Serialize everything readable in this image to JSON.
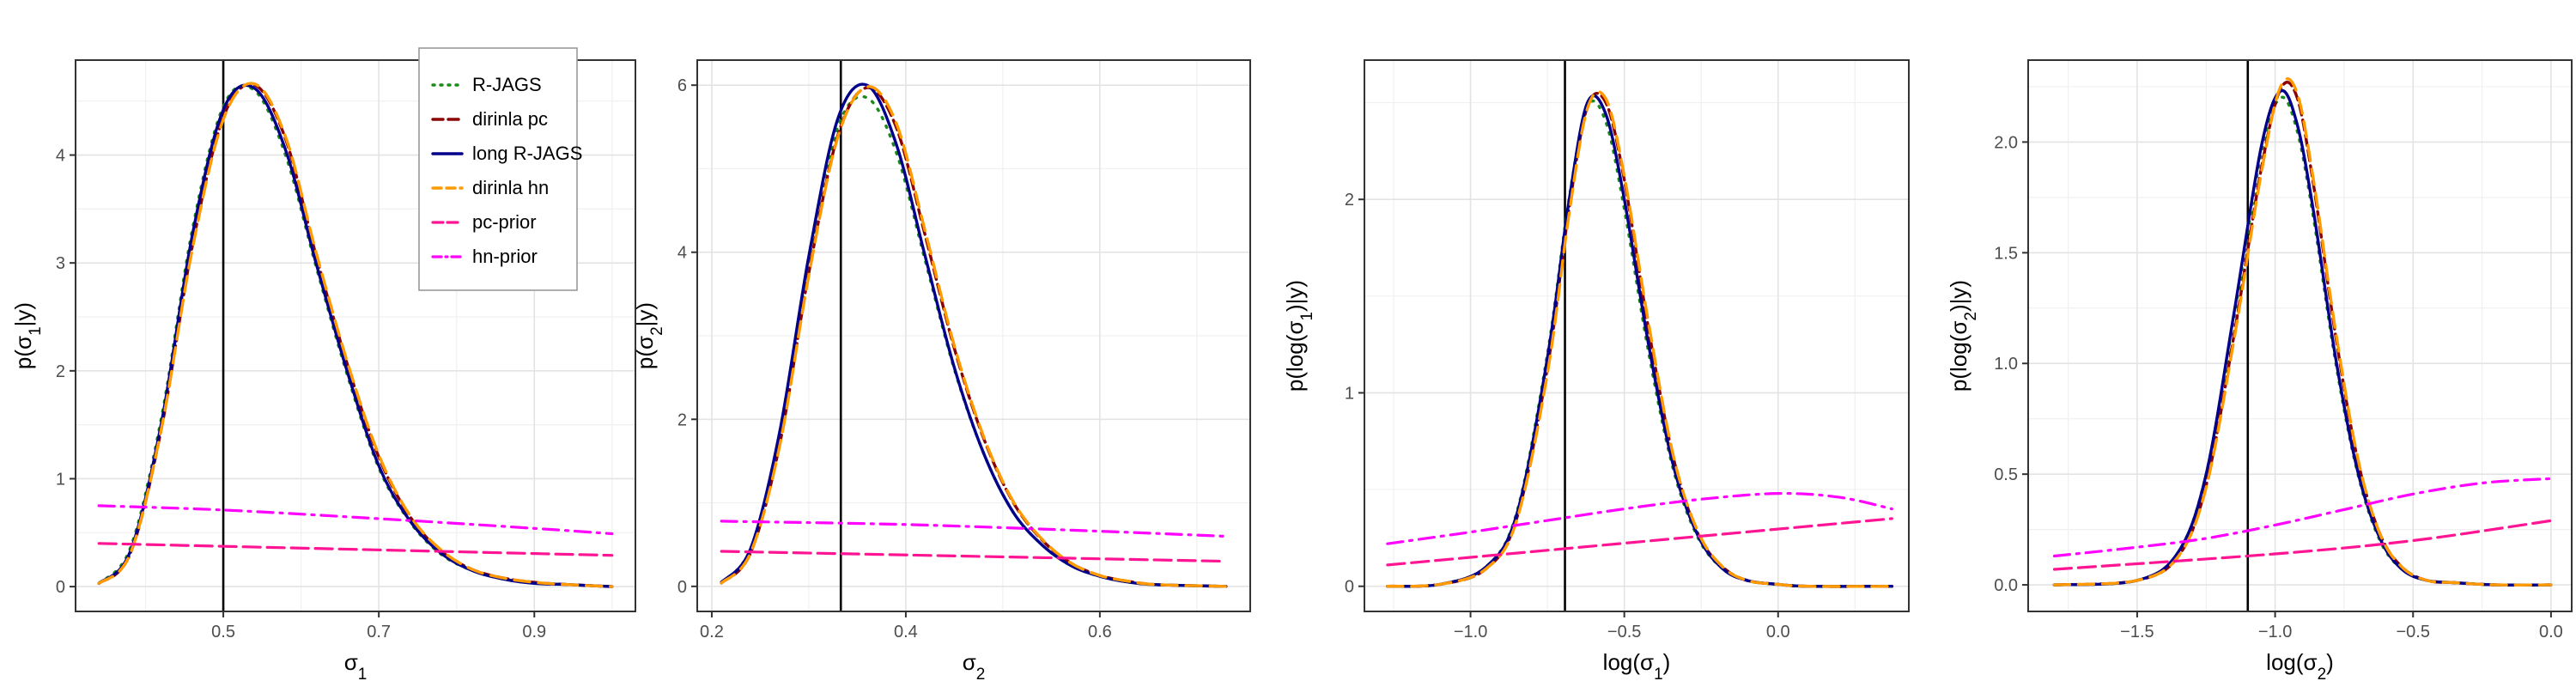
{
  "chart_data": [
    {
      "type": "line",
      "xlabel": "σ",
      "xlabel_sub": "1",
      "ylabel": "p(σ1|y)",
      "ylabel_parts": [
        "p(σ",
        "1",
        "|y)"
      ],
      "xlim": [
        0.31,
        1.03
      ],
      "ylim": [
        -0.23,
        4.88
      ],
      "xticks": [
        {
          "value": 0.5,
          "label": "0.5"
        },
        {
          "value": 0.7,
          "label": "0.7"
        },
        {
          "value": 0.9,
          "label": "0.9"
        }
      ],
      "yticks": [
        {
          "value": 0,
          "label": "0"
        },
        {
          "value": 1,
          "label": "1"
        },
        {
          "value": 2,
          "label": "2"
        },
        {
          "value": 3,
          "label": "3"
        },
        {
          "value": 4,
          "label": "4"
        }
      ],
      "vline": 0.5,
      "legend": true,
      "series": [
        {
          "name": "R-JAGS",
          "x": [
            0.34,
            0.38,
            0.42,
            0.46,
            0.5,
            0.54,
            0.58,
            0.62,
            0.66,
            0.7,
            0.74,
            0.78,
            0.82,
            0.86,
            0.9,
            0.94,
            1.0
          ],
          "y": [
            0.03,
            0.35,
            1.55,
            3.3,
            4.45,
            4.6,
            4.0,
            2.95,
            1.95,
            1.1,
            0.6,
            0.3,
            0.15,
            0.07,
            0.03,
            0.02,
            0.0
          ]
        },
        {
          "name": "dirinla pc",
          "x": [
            0.34,
            0.38,
            0.42,
            0.46,
            0.5,
            0.54,
            0.58,
            0.62,
            0.66,
            0.7,
            0.74,
            0.78,
            0.82,
            0.86,
            0.9,
            0.94,
            1.0
          ],
          "y": [
            0.03,
            0.3,
            1.45,
            3.15,
            4.35,
            4.65,
            4.15,
            3.05,
            2.05,
            1.2,
            0.65,
            0.33,
            0.16,
            0.08,
            0.04,
            0.02,
            0.0
          ]
        },
        {
          "name": "long R-JAGS",
          "x": [
            0.34,
            0.38,
            0.42,
            0.46,
            0.5,
            0.54,
            0.58,
            0.62,
            0.66,
            0.7,
            0.74,
            0.78,
            0.82,
            0.86,
            0.9,
            0.94,
            1.0
          ],
          "y": [
            0.03,
            0.32,
            1.5,
            3.25,
            4.42,
            4.62,
            4.05,
            2.98,
            1.98,
            1.12,
            0.61,
            0.31,
            0.15,
            0.07,
            0.03,
            0.02,
            0.0
          ]
        },
        {
          "name": "dirinla hn",
          "x": [
            0.34,
            0.38,
            0.42,
            0.46,
            0.5,
            0.54,
            0.58,
            0.62,
            0.66,
            0.7,
            0.74,
            0.78,
            0.82,
            0.86,
            0.9,
            0.94,
            1.0
          ],
          "y": [
            0.03,
            0.3,
            1.45,
            3.12,
            4.33,
            4.66,
            4.17,
            3.08,
            2.07,
            1.22,
            0.66,
            0.34,
            0.16,
            0.08,
            0.04,
            0.02,
            0.0
          ]
        },
        {
          "name": "pc-prior",
          "x": [
            0.34,
            1.0
          ],
          "y": [
            0.4,
            0.29
          ]
        },
        {
          "name": "hn-prior",
          "x": [
            0.34,
            0.5,
            0.7,
            0.9,
            1.0
          ],
          "y": [
            0.75,
            0.71,
            0.63,
            0.54,
            0.49
          ]
        }
      ]
    },
    {
      "type": "line",
      "xlabel": "σ",
      "xlabel_sub": "2",
      "ylabel": "p(σ2|y)",
      "ylabel_parts": [
        "p(σ",
        "2",
        "|y)"
      ],
      "xlim": [
        0.185,
        0.755
      ],
      "ylim": [
        -0.3,
        6.3
      ],
      "xticks": [
        {
          "value": 0.2,
          "label": "0.2"
        },
        {
          "value": 0.4,
          "label": "0.4"
        },
        {
          "value": 0.6,
          "label": "0.6"
        }
      ],
      "yticks": [
        {
          "value": 0,
          "label": "0"
        },
        {
          "value": 2,
          "label": "2"
        },
        {
          "value": 4,
          "label": "4"
        },
        {
          "value": 6,
          "label": "6"
        }
      ],
      "vline": 0.333,
      "legend": false,
      "series": [
        {
          "name": "R-JAGS",
          "x": [
            0.21,
            0.24,
            0.27,
            0.3,
            0.33,
            0.36,
            0.39,
            0.42,
            0.45,
            0.48,
            0.51,
            0.54,
            0.57,
            0.6,
            0.63,
            0.66,
            0.73
          ],
          "y": [
            0.05,
            0.45,
            1.8,
            3.9,
            5.5,
            5.85,
            5.2,
            3.9,
            2.6,
            1.6,
            0.9,
            0.5,
            0.25,
            0.12,
            0.05,
            0.02,
            0.0
          ]
        },
        {
          "name": "dirinla pc",
          "x": [
            0.21,
            0.24,
            0.27,
            0.3,
            0.33,
            0.36,
            0.39,
            0.42,
            0.45,
            0.48,
            0.51,
            0.54,
            0.57,
            0.6,
            0.63,
            0.66,
            0.73
          ],
          "y": [
            0.04,
            0.4,
            1.7,
            3.75,
            5.4,
            5.97,
            5.5,
            4.2,
            2.85,
            1.78,
            1.02,
            0.56,
            0.28,
            0.13,
            0.06,
            0.02,
            0.0
          ]
        },
        {
          "name": "long R-JAGS",
          "x": [
            0.21,
            0.24,
            0.27,
            0.3,
            0.33,
            0.36,
            0.39,
            0.42,
            0.45,
            0.48,
            0.51,
            0.54,
            0.57,
            0.6,
            0.63,
            0.66,
            0.73
          ],
          "y": [
            0.05,
            0.45,
            1.85,
            3.95,
            5.6,
            6.0,
            5.3,
            3.95,
            2.62,
            1.6,
            0.9,
            0.5,
            0.25,
            0.12,
            0.05,
            0.02,
            0.0
          ]
        },
        {
          "name": "dirinla hn",
          "x": [
            0.21,
            0.24,
            0.27,
            0.3,
            0.33,
            0.36,
            0.39,
            0.42,
            0.45,
            0.48,
            0.51,
            0.54,
            0.57,
            0.6,
            0.63,
            0.66,
            0.73
          ],
          "y": [
            0.04,
            0.4,
            1.68,
            3.72,
            5.38,
            5.98,
            5.55,
            4.25,
            2.88,
            1.8,
            1.03,
            0.57,
            0.28,
            0.13,
            0.06,
            0.02,
            0.0
          ]
        },
        {
          "name": "pc-prior",
          "x": [
            0.21,
            0.73
          ],
          "y": [
            0.42,
            0.3
          ]
        },
        {
          "name": "hn-prior",
          "x": [
            0.21,
            0.4,
            0.6,
            0.73
          ],
          "y": [
            0.78,
            0.74,
            0.66,
            0.6
          ]
        }
      ]
    },
    {
      "type": "line",
      "xlabel": "log(σ",
      "xlabel_sub": "1",
      "xlabel_after": ")",
      "ylabel": "p(log(σ1)|y)",
      "ylabel_parts": [
        "p(log(σ",
        "1",
        ")|y)"
      ],
      "xlim": [
        -1.345,
        0.425
      ],
      "ylim": [
        -0.13,
        2.72
      ],
      "xticks": [
        {
          "value": -1.0,
          "label": "−1.0"
        },
        {
          "value": -0.5,
          "label": "−0.5"
        },
        {
          "value": 0.0,
          "label": "0.0"
        }
      ],
      "yticks": [
        {
          "value": 0,
          "label": "0"
        },
        {
          "value": 1,
          "label": "1"
        },
        {
          "value": 2,
          "label": "2"
        }
      ],
      "vline": -0.693,
      "legend": false,
      "series": [
        {
          "name": "R-JAGS",
          "x": [
            -1.27,
            -1.1,
            -0.95,
            -0.85,
            -0.75,
            -0.68,
            -0.62,
            -0.56,
            -0.5,
            -0.42,
            -0.34,
            -0.26,
            -0.18,
            -0.1,
            0.0,
            0.1,
            0.37
          ],
          "y": [
            0.0,
            0.01,
            0.1,
            0.38,
            1.2,
            2.0,
            2.48,
            2.4,
            1.95,
            1.2,
            0.6,
            0.25,
            0.09,
            0.03,
            0.01,
            0.0,
            0.0
          ]
        },
        {
          "name": "dirinla pc",
          "x": [
            -1.27,
            -1.1,
            -0.95,
            -0.85,
            -0.75,
            -0.68,
            -0.62,
            -0.56,
            -0.5,
            -0.42,
            -0.34,
            -0.26,
            -0.18,
            -0.1,
            0.0,
            0.1,
            0.37
          ],
          "y": [
            0.0,
            0.01,
            0.09,
            0.35,
            1.13,
            1.95,
            2.48,
            2.5,
            2.1,
            1.32,
            0.66,
            0.27,
            0.1,
            0.03,
            0.01,
            0.0,
            0.0
          ]
        },
        {
          "name": "long R-JAGS",
          "x": [
            -1.27,
            -1.1,
            -0.95,
            -0.85,
            -0.75,
            -0.68,
            -0.62,
            -0.56,
            -0.5,
            -0.42,
            -0.34,
            -0.26,
            -0.18,
            -0.1,
            0.0,
            0.1,
            0.37
          ],
          "y": [
            0.0,
            0.01,
            0.1,
            0.37,
            1.18,
            1.99,
            2.5,
            2.44,
            2.0,
            1.24,
            0.62,
            0.26,
            0.09,
            0.03,
            0.01,
            0.0,
            0.0
          ]
        },
        {
          "name": "dirinla hn",
          "x": [
            -1.27,
            -1.1,
            -0.95,
            -0.85,
            -0.75,
            -0.68,
            -0.62,
            -0.56,
            -0.5,
            -0.42,
            -0.34,
            -0.26,
            -0.18,
            -0.1,
            0.0,
            0.1,
            0.37
          ],
          "y": [
            0.0,
            0.01,
            0.09,
            0.34,
            1.1,
            1.92,
            2.47,
            2.52,
            2.12,
            1.35,
            0.67,
            0.28,
            0.1,
            0.03,
            0.01,
            0.0,
            0.0
          ]
        },
        {
          "name": "pc-prior",
          "x": [
            -1.27,
            0.37
          ],
          "y": [
            0.11,
            0.35
          ]
        },
        {
          "name": "hn-prior",
          "x": [
            -1.27,
            -1.0,
            -0.75,
            -0.5,
            -0.25,
            0.0,
            0.2,
            0.37
          ],
          "y": [
            0.22,
            0.28,
            0.34,
            0.4,
            0.45,
            0.48,
            0.46,
            0.4
          ]
        }
      ]
    },
    {
      "type": "line",
      "xlabel": "log(σ",
      "xlabel_sub": "2",
      "xlabel_after": ")",
      "ylabel": "p(log(σ2)|y)",
      "ylabel_parts": [
        "p(log(σ",
        "2",
        ")|y)"
      ],
      "xlim": [
        -1.895,
        0.075
      ],
      "ylim": [
        -0.12,
        2.37
      ],
      "xticks": [
        {
          "value": -1.5,
          "label": "−1.5"
        },
        {
          "value": -1.0,
          "label": "−1.0"
        },
        {
          "value": -0.5,
          "label": "−0.5"
        },
        {
          "value": 0.0,
          "label": "0.0"
        }
      ],
      "yticks": [
        {
          "value": 0.0,
          "label": "0.0"
        },
        {
          "value": 0.5,
          "label": "0.5"
        },
        {
          "value": 1.0,
          "label": "1.0"
        },
        {
          "value": 1.5,
          "label": "1.5"
        },
        {
          "value": 2.0,
          "label": "2.0"
        }
      ],
      "vline": -1.099,
      "legend": false,
      "series": [
        {
          "name": "R-JAGS",
          "x": [
            -1.8,
            -1.5,
            -1.35,
            -1.25,
            -1.15,
            -1.05,
            -0.98,
            -0.92,
            -0.86,
            -0.78,
            -0.7,
            -0.62,
            -0.54,
            -0.45,
            -0.35,
            -0.2,
            0.0
          ],
          "y": [
            0.0,
            0.02,
            0.15,
            0.5,
            1.2,
            1.95,
            2.2,
            2.05,
            1.65,
            1.0,
            0.5,
            0.2,
            0.07,
            0.02,
            0.01,
            0.0,
            0.0
          ]
        },
        {
          "name": "dirinla pc",
          "x": [
            -1.8,
            -1.5,
            -1.35,
            -1.25,
            -1.15,
            -1.05,
            -0.98,
            -0.92,
            -0.86,
            -0.78,
            -0.7,
            -0.62,
            -0.54,
            -0.45,
            -0.35,
            -0.2,
            0.0
          ],
          "y": [
            0.0,
            0.02,
            0.13,
            0.45,
            1.12,
            1.88,
            2.24,
            2.2,
            1.8,
            1.12,
            0.56,
            0.23,
            0.08,
            0.02,
            0.01,
            0.0,
            0.0
          ]
        },
        {
          "name": "long R-JAGS",
          "x": [
            -1.8,
            -1.5,
            -1.35,
            -1.25,
            -1.15,
            -1.05,
            -0.98,
            -0.92,
            -0.86,
            -0.78,
            -0.7,
            -0.62,
            -0.54,
            -0.45,
            -0.35,
            -0.2,
            0.0
          ],
          "y": [
            0.0,
            0.02,
            0.15,
            0.5,
            1.22,
            1.98,
            2.23,
            2.08,
            1.68,
            1.02,
            0.51,
            0.21,
            0.07,
            0.02,
            0.01,
            0.0,
            0.0
          ]
        },
        {
          "name": "dirinla hn",
          "x": [
            -1.8,
            -1.5,
            -1.35,
            -1.25,
            -1.15,
            -1.05,
            -0.98,
            -0.92,
            -0.86,
            -0.78,
            -0.7,
            -0.62,
            -0.54,
            -0.45,
            -0.35,
            -0.2,
            0.0
          ],
          "y": [
            0.0,
            0.02,
            0.13,
            0.44,
            1.1,
            1.86,
            2.25,
            2.22,
            1.82,
            1.14,
            0.57,
            0.23,
            0.08,
            0.02,
            0.01,
            0.0,
            0.0
          ]
        },
        {
          "name": "pc-prior",
          "x": [
            -1.8,
            -1.0,
            -0.5,
            0.0
          ],
          "y": [
            0.07,
            0.14,
            0.2,
            0.29
          ]
        },
        {
          "name": "hn-prior",
          "x": [
            -1.8,
            -1.5,
            -1.25,
            -1.0,
            -0.75,
            -0.5,
            -0.25,
            0.0
          ],
          "y": [
            0.13,
            0.17,
            0.21,
            0.27,
            0.34,
            0.41,
            0.46,
            0.48
          ]
        }
      ]
    }
  ],
  "series_styles": [
    {
      "name": "R-JAGS",
      "color": "#1a8a1a",
      "dash": "2 9",
      "width": 3.4
    },
    {
      "name": "dirinla pc",
      "color": "#8b0000",
      "dash": "12 6",
      "width": 3.4
    },
    {
      "name": "long R-JAGS",
      "color": "#00008b",
      "dash": "",
      "width": 3.4
    },
    {
      "name": "dirinla hn",
      "color": "#ff9a00",
      "dash": "18 10",
      "width": 3.4
    },
    {
      "name": "pc-prior",
      "color": "#ff1493",
      "dash": "20 8",
      "width": 3.2
    },
    {
      "name": "hn-prior",
      "color": "#ff00ff",
      "dash": "18 8 3 8",
      "width": 3.2
    }
  ]
}
